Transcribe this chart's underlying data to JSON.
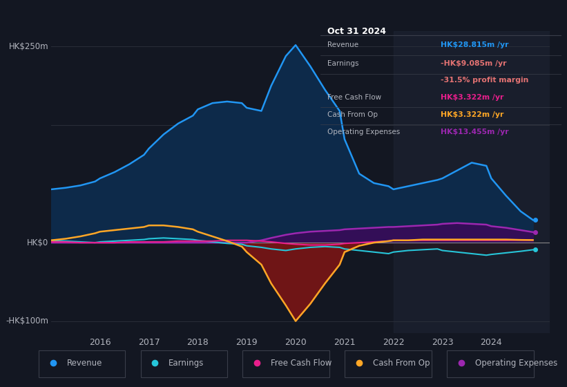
{
  "bg_color": "#131722",
  "chart_bg": "#131722",
  "grid_color": "#2a2e39",
  "text_color": "#b2b5be",
  "title_color": "#ffffff",
  "ylim": [
    -115,
    270
  ],
  "ylabel_top": "HK$250m",
  "ylabel_zero": "HK$0",
  "ylabel_bot": "-HK$100m",
  "years": [
    2015.0,
    2015.3,
    2015.6,
    2015.9,
    2016.0,
    2016.3,
    2016.6,
    2016.9,
    2017.0,
    2017.3,
    2017.6,
    2017.9,
    2018.0,
    2018.3,
    2018.6,
    2018.9,
    2019.0,
    2019.3,
    2019.5,
    2019.8,
    2020.0,
    2020.3,
    2020.6,
    2020.9,
    2021.0,
    2021.3,
    2021.6,
    2021.9,
    2022.0,
    2022.3,
    2022.6,
    2022.9,
    2023.0,
    2023.3,
    2023.6,
    2023.9,
    2024.0,
    2024.3,
    2024.6,
    2024.85
  ],
  "revenue": [
    68,
    70,
    73,
    78,
    82,
    90,
    100,
    112,
    120,
    138,
    152,
    162,
    170,
    178,
    180,
    178,
    172,
    168,
    200,
    238,
    252,
    225,
    195,
    168,
    132,
    88,
    76,
    72,
    68,
    72,
    76,
    80,
    82,
    92,
    102,
    98,
    82,
    60,
    40,
    29
  ],
  "earnings": [
    3,
    2,
    1,
    0,
    1,
    2,
    3,
    4,
    5,
    6,
    5,
    4,
    3,
    1,
    -1,
    -2,
    -4,
    -6,
    -8,
    -10,
    -8,
    -6,
    -5,
    -6,
    -8,
    -10,
    -12,
    -14,
    -12,
    -10,
    -9,
    -8,
    -10,
    -12,
    -14,
    -16,
    -15,
    -13,
    -11,
    -9.085
  ],
  "free_cash_flow": [
    1,
    1,
    0,
    0,
    0,
    0,
    1,
    1,
    1,
    1,
    2,
    2,
    2,
    2,
    3,
    3,
    3,
    2,
    1,
    -1,
    -2,
    -3,
    -3,
    -2,
    -1,
    0,
    1,
    2,
    3,
    3,
    3,
    3,
    3,
    3,
    3,
    3,
    3,
    3,
    3.3,
    3.322
  ],
  "cash_from_op": [
    3,
    5,
    8,
    12,
    14,
    16,
    18,
    20,
    22,
    22,
    20,
    17,
    14,
    8,
    2,
    -5,
    -12,
    -28,
    -52,
    -80,
    -100,
    -78,
    -52,
    -28,
    -12,
    -4,
    0,
    2,
    3,
    3,
    4,
    4,
    4,
    4,
    4,
    4,
    4,
    4,
    3.5,
    3.322
  ],
  "operating_expenses": [
    0,
    0,
    0,
    0,
    0,
    0,
    0,
    0,
    0,
    0,
    0,
    0,
    0,
    0,
    0,
    0,
    0,
    3,
    6,
    10,
    12,
    14,
    15,
    16,
    17,
    18,
    19,
    20,
    20,
    21,
    22,
    23,
    24,
    25,
    24,
    23,
    21,
    19,
    16,
    13.455
  ],
  "revenue_color": "#2196f3",
  "revenue_fill": "#0d2a4a",
  "earnings_color": "#26c6da",
  "free_cash_flow_color": "#e91e8c",
  "cash_from_op_color": "#ffa726",
  "operating_expenses_color": "#9c27b0",
  "info_box": {
    "title": "Oct 31 2024",
    "rows": [
      {
        "label": "Revenue",
        "value": "HK$28.815m /yr",
        "value_color": "#2196f3"
      },
      {
        "label": "Earnings",
        "value": "-HK$9.085m /yr",
        "value_color": "#e57373"
      },
      {
        "label": "",
        "value": "-31.5% profit margin",
        "value_color": "#e57373"
      },
      {
        "label": "Free Cash Flow",
        "value": "HK$3.322m /yr",
        "value_color": "#e91e8c"
      },
      {
        "label": "Cash From Op",
        "value": "HK$3.322m /yr",
        "value_color": "#ffa726"
      },
      {
        "label": "Operating Expenses",
        "value": "HK$13.455m /yr",
        "value_color": "#9c27b0"
      }
    ]
  },
  "legend": [
    {
      "label": "Revenue",
      "color": "#2196f3"
    },
    {
      "label": "Earnings",
      "color": "#26c6da"
    },
    {
      "label": "Free Cash Flow",
      "color": "#e91e8c"
    },
    {
      "label": "Cash From Op",
      "color": "#ffa726"
    },
    {
      "label": "Operating Expenses",
      "color": "#9c27b0"
    }
  ],
  "xlim": [
    2015.0,
    2025.2
  ],
  "xticks": [
    2016,
    2017,
    2018,
    2019,
    2020,
    2021,
    2022,
    2023,
    2024
  ],
  "highlight_start": 2022.0,
  "highlight_end": 2025.2
}
